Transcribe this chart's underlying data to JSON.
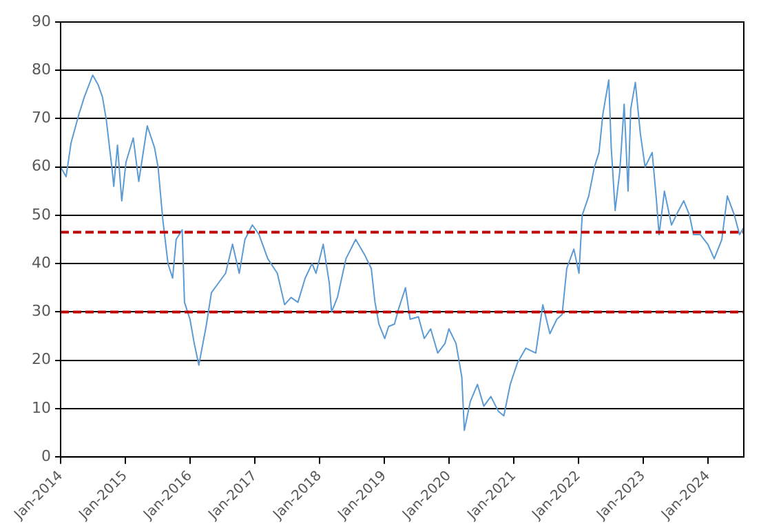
{
  "chart_data": {
    "type": "line",
    "x": [
      "2014-01-01",
      "2014-02-01",
      "2014-03-01",
      "2014-04-15",
      "2014-05-15",
      "2014-07-01",
      "2014-08-01",
      "2014-08-25",
      "2014-09-15",
      "2014-10-20",
      "2014-10-28",
      "2014-11-18",
      "2014-12-12",
      "2015-01-05",
      "2015-02-15",
      "2015-03-18",
      "2015-05-05",
      "2015-06-15",
      "2015-07-05",
      "2015-08-01",
      "2015-08-30",
      "2015-09-25",
      "2015-10-15",
      "2015-11-18",
      "2015-12-01",
      "2016-01-01",
      "2016-01-25",
      "2016-02-20",
      "2016-04-01",
      "2016-05-01",
      "2016-06-10",
      "2016-07-20",
      "2016-08-28",
      "2016-10-05",
      "2016-11-06",
      "2016-12-18",
      "2017-01-25",
      "2017-03-15",
      "2017-05-08",
      "2017-06-18",
      "2017-07-24",
      "2017-09-01",
      "2017-10-12",
      "2017-11-20",
      "2017-12-12",
      "2018-01-22",
      "2018-02-25",
      "2018-03-10",
      "2018-04-12",
      "2018-05-30",
      "2018-07-24",
      "2018-09-10",
      "2018-10-20",
      "2018-11-10",
      "2018-12-02",
      "2019-01-04",
      "2019-01-26",
      "2019-02-28",
      "2019-03-22",
      "2019-05-01",
      "2019-05-27",
      "2019-07-13",
      "2019-08-15",
      "2019-09-20",
      "2019-10-30",
      "2019-12-10",
      "2020-01-01",
      "2020-02-10",
      "2020-03-14",
      "2020-03-28",
      "2020-05-01",
      "2020-06-10",
      "2020-07-16",
      "2020-08-25",
      "2020-10-05",
      "2020-11-06",
      "2020-12-12",
      "2021-01-22",
      "2021-03-10",
      "2021-05-05",
      "2021-06-14",
      "2021-07-24",
      "2021-09-01",
      "2021-10-01",
      "2021-10-27",
      "2021-12-06",
      "2022-01-04",
      "2022-01-22",
      "2022-02-28",
      "2022-04-01",
      "2022-04-27",
      "2022-05-19",
      "2022-06-21",
      "2022-07-05",
      "2022-07-27",
      "2022-08-22",
      "2022-09-16",
      "2022-10-08",
      "2022-10-23",
      "2022-11-18",
      "2022-12-16",
      "2023-01-12",
      "2023-02-21",
      "2023-03-15",
      "2023-04-01",
      "2023-05-01",
      "2023-06-10",
      "2023-07-20",
      "2023-08-18",
      "2023-09-20",
      "2023-10-12",
      "2023-11-20",
      "2024-01-01",
      "2024-02-06",
      "2024-03-20",
      "2024-04-20",
      "2024-05-30",
      "2024-06-28",
      "2024-07-22"
    ],
    "series": [
      {
        "color": "#5b9bd5",
        "values": [
          60,
          58,
          65,
          71,
          74.5,
          79,
          77,
          74.5,
          70,
          59,
          56,
          64.5,
          53,
          61,
          66,
          57,
          68.5,
          64,
          60,
          49,
          40,
          37,
          45,
          47,
          32,
          28.5,
          23.5,
          19,
          27,
          34,
          36,
          38,
          44,
          38,
          45,
          48,
          46,
          41,
          38,
          31.5,
          33,
          32,
          37,
          40,
          38,
          44,
          36,
          30,
          33,
          41,
          45,
          42,
          39,
          32,
          27.5,
          24.5,
          27,
          27.5,
          30.5,
          35,
          28.5,
          29,
          24.5,
          26.5,
          21.5,
          23.5,
          26.5,
          23.5,
          16.5,
          5.5,
          11.5,
          15,
          10.5,
          12.5,
          9.5,
          8.5,
          15,
          19.5,
          22.5,
          21.5,
          31.5,
          25.5,
          28.5,
          29.5,
          39,
          43,
          38,
          50,
          54,
          60,
          63,
          71,
          78,
          64,
          51,
          59,
          73,
          55,
          72,
          77.5,
          67,
          60,
          63,
          54,
          46,
          55,
          48,
          51,
          53,
          50,
          46,
          46,
          44,
          41,
          45,
          54,
          50,
          46,
          47.5
        ]
      }
    ],
    "xlim": [
      "2014-01-01",
      "2024-07-22"
    ],
    "xticks": [
      {
        "value": "2014-01-01",
        "label": "Jan-2014"
      },
      {
        "value": "2015-01-01",
        "label": "Jan-2015"
      },
      {
        "value": "2016-01-01",
        "label": "Jan-2016"
      },
      {
        "value": "2017-01-01",
        "label": "Jan-2017"
      },
      {
        "value": "2018-01-01",
        "label": "Jan-2018"
      },
      {
        "value": "2019-01-01",
        "label": "Jan-2019"
      },
      {
        "value": "2020-01-01",
        "label": "Jan-2020"
      },
      {
        "value": "2021-01-01",
        "label": "Jan-2021"
      },
      {
        "value": "2022-01-01",
        "label": "Jan-2022"
      },
      {
        "value": "2023-01-01",
        "label": "Jan-2023"
      },
      {
        "value": "2024-01-01",
        "label": "Jan-2024"
      }
    ],
    "ylim": [
      0,
      90
    ],
    "yticks": [
      0,
      10,
      20,
      30,
      40,
      50,
      60,
      70,
      80,
      90
    ],
    "grid": "y",
    "legend": false,
    "marker": "none",
    "line_style": "solid",
    "ref_lines": [
      {
        "axis": "y",
        "value": 46.5,
        "color": "#c00000",
        "line_style": "dashed"
      },
      {
        "axis": "y",
        "value": 30,
        "color": "#c00000",
        "line_style": "dashed"
      }
    ]
  }
}
